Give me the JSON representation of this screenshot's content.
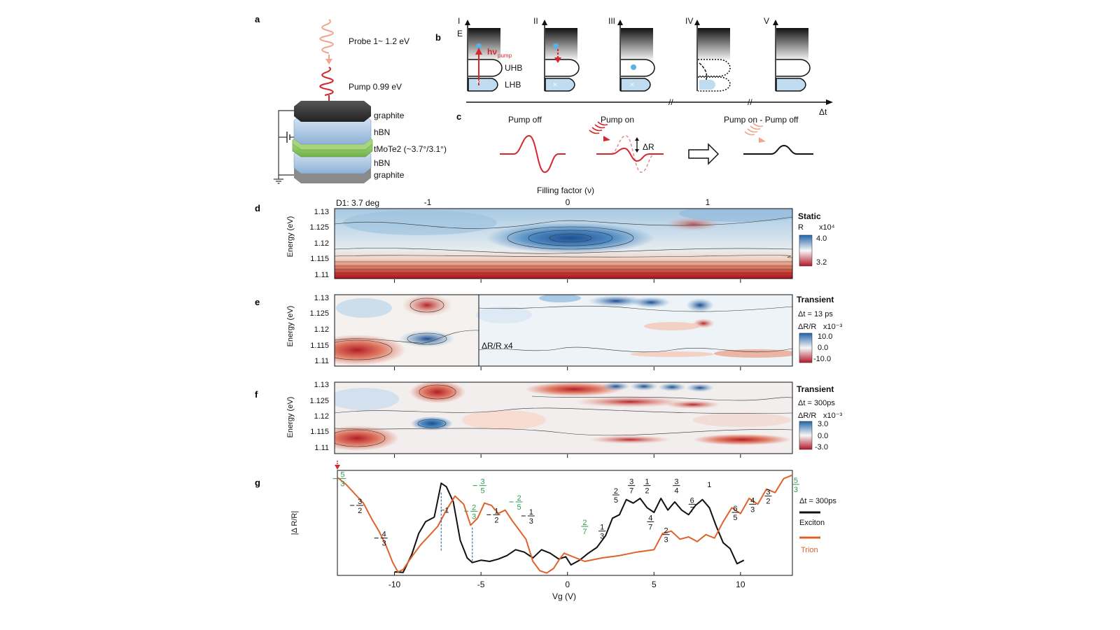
{
  "panel_labels": {
    "a": "a",
    "b": "b",
    "c": "c",
    "d": "d",
    "e": "e",
    "f": "f",
    "g": "g"
  },
  "panel_a": {
    "probe": "Probe 1~ 1.2 eV",
    "pump": "Pump 0.99 eV",
    "layers": [
      "graphite",
      "hBN",
      "tMoTe2 (~3.7°/3.1°)",
      "hBN",
      "graphite"
    ]
  },
  "panel_b": {
    "stages": [
      "I",
      "II",
      "III",
      "IV",
      "V"
    ],
    "energy_axis": "E",
    "pump_label": "hν",
    "pump_sub": "pump",
    "uhb": "UHB",
    "lhb": "LHB",
    "time_axis": "Δt"
  },
  "panel_c": {
    "pump_off": "Pump off",
    "pump_on": "Pump on",
    "delta_r": "ΔR",
    "difference": "Pump on - Pump off"
  },
  "panel_d": {
    "top_axis_title": "Filling factor (ν)",
    "top_ticks": [
      "-1",
      "0",
      "1"
    ],
    "device": "D1: 3.7 deg",
    "ylabel": "Energy (eV)",
    "yticks": [
      "1.13",
      "1.125",
      "1.12",
      "1.115",
      "1.11"
    ],
    "title": "Static",
    "quantity": "R",
    "scale": "x10⁴",
    "cbar_max": "4.0",
    "cbar_min": "3.2"
  },
  "panel_e": {
    "ylabel": "Energy (eV)",
    "yticks": [
      "1.13",
      "1.125",
      "1.12",
      "1.115",
      "1.11"
    ],
    "title": "Transient",
    "delay": "Δt = 13 ps",
    "quantity": "ΔR/R",
    "scale": "x10⁻³",
    "cbar_max": "10.0",
    "cbar_mid": "0.0",
    "cbar_min": "-10.0",
    "inset_note": "ΔR/R x4"
  },
  "panel_f": {
    "ylabel": "Energy (eV)",
    "yticks": [
      "1.13",
      "1.125",
      "1.12",
      "1.115",
      "1.11"
    ],
    "title": "Transient",
    "delay": "Δt = 300ps",
    "quantity": "ΔR/R",
    "scale": "x10⁻³",
    "cbar_max": "3.0",
    "cbar_mid": "0.0",
    "cbar_min": "-3.0"
  },
  "panel_g": {
    "ylabel": "|Δ R/R|",
    "xlabel": "Vg (V)",
    "xticks": [
      "-10",
      "-5",
      "0",
      "5",
      "10"
    ],
    "delay": "Δt = 300ps",
    "legend_exciton": "Exciton",
    "legend_trion": "Trion",
    "colors": {
      "exciton": "#111111",
      "trion": "#e0622b",
      "green": "#2e9a4f",
      "blue_dash": "#3d6fb8"
    }
  },
  "chart_data": {
    "type": "line",
    "title": "",
    "xlabel": "Vg (V)",
    "ylabel": "|Δ R/R|",
    "xlim": [
      -13.3,
      13
    ],
    "series": [
      {
        "name": "Exciton",
        "x": [
          -10,
          -9.5,
          -9,
          -8.6,
          -8.2,
          -7.7,
          -7.3,
          -7.0,
          -6.6,
          -6.2,
          -5.8,
          -5.5,
          -5,
          -4.5,
          -4,
          -3.5,
          -3,
          -2.5,
          -2,
          -1.5,
          -1,
          -0.5,
          -0.1,
          0.2,
          0.7,
          1.2,
          1.7,
          2.2,
          2.6,
          3.0,
          3.4,
          3.8,
          4.2,
          4.6,
          5.0,
          5.4,
          5.8,
          6.2,
          6.6,
          7.0,
          7.4,
          7.8,
          8.2,
          8.6,
          9.0,
          9.4,
          9.8,
          10.2
        ],
        "values": [
          0.3,
          0.25,
          1.8,
          3.6,
          4.6,
          5.0,
          7.9,
          7.6,
          6.3,
          3.0,
          1.5,
          1.1,
          1.3,
          1.2,
          1.4,
          1.7,
          2.2,
          2.0,
          1.5,
          2.2,
          1.9,
          1.4,
          1.6,
          0.9,
          1.3,
          1.9,
          2.4,
          3.4,
          4.9,
          5.2,
          6.5,
          6.2,
          6.6,
          5.8,
          5.4,
          6.6,
          5.6,
          6.3,
          5.6,
          5.2,
          6.0,
          6.5,
          5.8,
          4.2,
          2.8,
          2.3,
          1.0,
          1.3
        ]
      },
      {
        "name": "Trion",
        "x": [
          -13.3,
          -12.8,
          -12.3,
          -11.8,
          -11.3,
          -10.9,
          -10.5,
          -10.1,
          -9.8,
          -9.5,
          -9.0,
          -8.5,
          -8.0,
          -7.5,
          -7.0,
          -6.5,
          -6.0,
          -5.6,
          -5.2,
          -4.8,
          -4.4,
          -4.0,
          -3.6,
          -3.2,
          -2.8,
          -2.4,
          -2.0,
          -1.6,
          -1.2,
          -0.8,
          -0.5,
          -0.2,
          1.0,
          2.0,
          3.0,
          4.0,
          5.0,
          5.5,
          6.0,
          6.5,
          7.0,
          7.5,
          8.0,
          8.5,
          9.0,
          9.5,
          10.0,
          10.5,
          11.0,
          11.5,
          12.0,
          12.5,
          13.0
        ],
        "values": [
          8.4,
          7.8,
          7.0,
          6.2,
          4.8,
          3.8,
          2.6,
          1.1,
          0.3,
          0.5,
          1.6,
          2.6,
          3.4,
          4.2,
          5.6,
          6.8,
          6.1,
          4.3,
          4.9,
          6.2,
          6.0,
          5.3,
          5.6,
          4.7,
          3.9,
          3.1,
          1.2,
          0.4,
          0.2,
          0.6,
          1.3,
          1.9,
          1.2,
          1.5,
          1.7,
          2.0,
          2.2,
          3.6,
          3.8,
          3.1,
          3.3,
          2.9,
          3.5,
          3.2,
          4.6,
          5.8,
          5.3,
          6.6,
          6.1,
          7.4,
          7.1,
          8.3,
          8.6
        ]
      }
    ],
    "annotations": [
      {
        "label": "-5/3",
        "color": "green"
      },
      {
        "label": "-3/2",
        "color": "black"
      },
      {
        "label": "-4/3",
        "color": "black"
      },
      {
        "label": "-1",
        "color": "black"
      },
      {
        "label": "-3/5",
        "color": "green"
      },
      {
        "label": "-2/3",
        "color": "green"
      },
      {
        "label": "-1/2",
        "color": "black"
      },
      {
        "label": "-2/5",
        "color": "green"
      },
      {
        "label": "-1/3",
        "color": "black"
      },
      {
        "label": "2/7",
        "color": "green"
      },
      {
        "label": "1/3",
        "color": "black"
      },
      {
        "label": "2/5",
        "color": "black"
      },
      {
        "label": "3/7",
        "color": "black"
      },
      {
        "label": "1/2",
        "color": "black"
      },
      {
        "label": "3/4",
        "color": "black"
      },
      {
        "label": "6/7",
        "color": "black"
      },
      {
        "label": "1",
        "color": "black"
      },
      {
        "label": "4/7",
        "color": "black"
      },
      {
        "label": "2/3",
        "color": "black"
      },
      {
        "label": "6/5",
        "color": "black"
      },
      {
        "label": "4/3",
        "color": "black"
      },
      {
        "label": "3/2",
        "color": "black"
      },
      {
        "label": "5/3",
        "color": "green"
      }
    ]
  }
}
